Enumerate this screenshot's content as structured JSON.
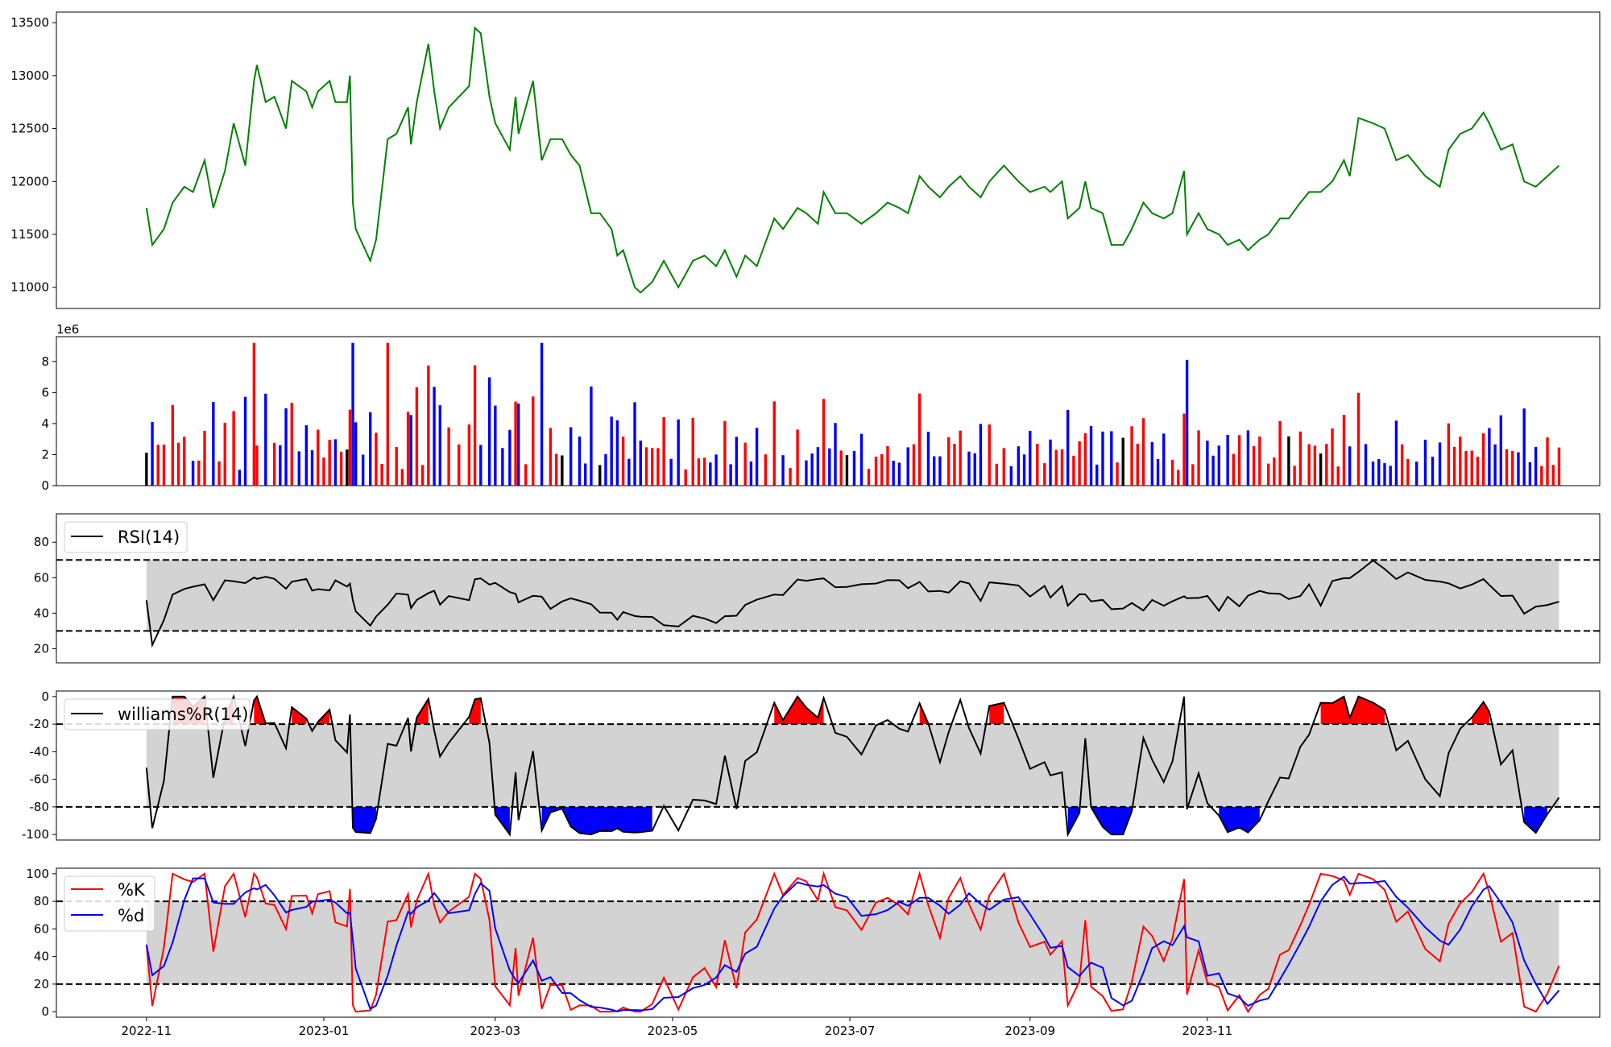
{
  "chart_data": [
    {
      "panel": "price",
      "type": "line",
      "ylim": [
        10800,
        13600
      ],
      "yticks": [
        11000,
        11500,
        12000,
        12500,
        13000,
        13500
      ],
      "colors": {
        "line": "#008000"
      },
      "series": [
        {
          "values": [
            [
              "2022-11-01",
              11750
            ],
            [
              "2022-11-03",
              11400
            ],
            [
              "2022-11-07",
              11550
            ],
            [
              "2022-11-10",
              11800
            ],
            [
              "2022-11-14",
              11950
            ],
            [
              "2022-11-17",
              11900
            ],
            [
              "2022-11-21",
              12200
            ],
            [
              "2022-11-24",
              11750
            ],
            [
              "2022-11-28",
              12100
            ],
            [
              "2022-12-01",
              12550
            ],
            [
              "2022-12-05",
              12150
            ],
            [
              "2022-12-08",
              12950
            ],
            [
              "2022-12-09",
              13100
            ],
            [
              "2022-12-12",
              12750
            ],
            [
              "2022-12-15",
              12800
            ],
            [
              "2022-12-19",
              12500
            ],
            [
              "2022-12-21",
              12950
            ],
            [
              "2022-12-26",
              12850
            ],
            [
              "2022-12-28",
              12700
            ],
            [
              "2022-12-30",
              12850
            ],
            [
              "2023-01-03",
              12950
            ],
            [
              "2023-01-05",
              12750
            ],
            [
              "2023-01-09",
              12750
            ],
            [
              "2023-01-10",
              13000
            ],
            [
              "2023-01-11",
              11800
            ],
            [
              "2023-01-12",
              11550
            ],
            [
              "2023-01-17",
              11250
            ],
            [
              "2023-01-19",
              11450
            ],
            [
              "2023-01-23",
              12400
            ],
            [
              "2023-01-26",
              12450
            ],
            [
              "2023-01-30",
              12700
            ],
            [
              "2023-01-31",
              12350
            ],
            [
              "2023-02-02",
              12750
            ],
            [
              "2023-02-06",
              13300
            ],
            [
              "2023-02-08",
              12850
            ],
            [
              "2023-02-10",
              12500
            ],
            [
              "2023-02-13",
              12700
            ],
            [
              "2023-02-20",
              12900
            ],
            [
              "2023-02-22",
              13450
            ],
            [
              "2023-02-24",
              13400
            ],
            [
              "2023-02-27",
              12800
            ],
            [
              "2023-03-01",
              12550
            ],
            [
              "2023-03-06",
              12300
            ],
            [
              "2023-03-08",
              12800
            ],
            [
              "2023-03-09",
              12450
            ],
            [
              "2023-03-14",
              12950
            ],
            [
              "2023-03-17",
              12200
            ],
            [
              "2023-03-20",
              12400
            ],
            [
              "2023-03-24",
              12400
            ],
            [
              "2023-03-27",
              12250
            ],
            [
              "2023-03-30",
              12150
            ],
            [
              "2023-04-03",
              11700
            ],
            [
              "2023-04-06",
              11700
            ],
            [
              "2023-04-10",
              11550
            ],
            [
              "2023-04-12",
              11300
            ],
            [
              "2023-04-14",
              11350
            ],
            [
              "2023-04-18",
              11000
            ],
            [
              "2023-04-20",
              10950
            ],
            [
              "2023-04-24",
              11050
            ],
            [
              "2023-04-28",
              11250
            ],
            [
              "2023-05-03",
              11000
            ],
            [
              "2023-05-08",
              11250
            ],
            [
              "2023-05-12",
              11300
            ],
            [
              "2023-05-16",
              11200
            ],
            [
              "2023-05-19",
              11350
            ],
            [
              "2023-05-23",
              11100
            ],
            [
              "2023-05-26",
              11300
            ],
            [
              "2023-05-30",
              11200
            ],
            [
              "2023-06-05",
              11650
            ],
            [
              "2023-06-08",
              11550
            ],
            [
              "2023-06-13",
              11750
            ],
            [
              "2023-06-16",
              11700
            ],
            [
              "2023-06-20",
              11600
            ],
            [
              "2023-06-22",
              11900
            ],
            [
              "2023-06-26",
              11700
            ],
            [
              "2023-06-30",
              11700
            ],
            [
              "2023-07-05",
              11600
            ],
            [
              "2023-07-10",
              11700
            ],
            [
              "2023-07-14",
              11800
            ],
            [
              "2023-07-18",
              11750
            ],
            [
              "2023-07-21",
              11700
            ],
            [
              "2023-07-25",
              12050
            ],
            [
              "2023-07-28",
              11950
            ],
            [
              "2023-08-01",
              11850
            ],
            [
              "2023-08-04",
              11950
            ],
            [
              "2023-08-08",
              12050
            ],
            [
              "2023-08-11",
              11950
            ],
            [
              "2023-08-15",
              11850
            ],
            [
              "2023-08-18",
              12000
            ],
            [
              "2023-08-23",
              12150
            ],
            [
              "2023-08-28",
              12000
            ],
            [
              "2023-09-01",
              11900
            ],
            [
              "2023-09-06",
              11950
            ],
            [
              "2023-09-08",
              11900
            ],
            [
              "2023-09-12",
              12000
            ],
            [
              "2023-09-14",
              11650
            ],
            [
              "2023-09-18",
              11750
            ],
            [
              "2023-09-20",
              12000
            ],
            [
              "2023-09-22",
              11750
            ],
            [
              "2023-09-26",
              11700
            ],
            [
              "2023-09-29",
              11400
            ],
            [
              "2023-10-03",
              11400
            ],
            [
              "2023-10-06",
              11550
            ],
            [
              "2023-10-10",
              11800
            ],
            [
              "2023-10-13",
              11700
            ],
            [
              "2023-10-17",
              11650
            ],
            [
              "2023-10-20",
              11700
            ],
            [
              "2023-10-24",
              12100
            ],
            [
              "2023-10-25",
              11500
            ],
            [
              "2023-10-29",
              11700
            ],
            [
              "2023-11-01",
              11550
            ],
            [
              "2023-11-05",
              11500
            ],
            [
              "2023-11-08",
              11400
            ],
            [
              "2023-11-12",
              11450
            ],
            [
              "2023-11-15",
              11350
            ],
            [
              "2023-11-19",
              11450
            ],
            [
              "2023-11-22",
              11500
            ],
            [
              "2023-11-26",
              11650
            ],
            [
              "2023-11-29",
              11650
            ],
            [
              "2023-12-03",
              11800
            ],
            [
              "2023-12-06",
              11900
            ],
            [
              "2023-12-10",
              11900
            ],
            [
              "2023-12-14",
              12000
            ],
            [
              "2023-12-18",
              12200
            ],
            [
              "2023-12-20",
              12050
            ],
            [
              "2023-12-23",
              12600
            ],
            [
              "2023-12-28",
              12550
            ],
            [
              "2024-01-01",
              12500
            ],
            [
              "2024-01-05",
              12200
            ],
            [
              "2024-01-09",
              12250
            ],
            [
              "2024-01-15",
              12050
            ],
            [
              "2024-01-20",
              11950
            ],
            [
              "2024-01-23",
              12300
            ],
            [
              "2024-01-27",
              12450
            ],
            [
              "2024-01-31",
              12500
            ],
            [
              "2024-02-04",
              12650
            ],
            [
              "2024-02-06",
              12550
            ],
            [
              "2024-02-10",
              12300
            ],
            [
              "2024-02-14",
              12350
            ],
            [
              "2024-02-18",
              12000
            ],
            [
              "2024-02-22",
              11950
            ],
            [
              "2024-02-26",
              12050
            ],
            [
              "2024-03-01",
              12150
            ]
          ]
        }
      ]
    },
    {
      "panel": "volume",
      "type": "bar",
      "ylim": [
        0,
        9600000
      ],
      "yticks": [
        0,
        2,
        4,
        6,
        8
      ],
      "offset_text": "1e6",
      "colors": {
        "up": "#ff0000",
        "down": "#0000ff",
        "flat": "#000000"
      }
    },
    {
      "panel": "rsi",
      "type": "line",
      "ylim": [
        12,
        96
      ],
      "yticks": [
        20,
        40,
        60,
        80
      ],
      "thresholds": [
        30,
        70
      ],
      "legend": [
        "RSI(14)"
      ],
      "legend_position": "upper-left",
      "colors": {
        "line": "#000000",
        "band": "#d3d3d3",
        "over": "#ff0000",
        "under": "#0000ff"
      }
    },
    {
      "panel": "williams_r",
      "type": "line",
      "ylim": [
        -104,
        4
      ],
      "yticks": [
        0,
        -20,
        -40,
        -60,
        -80,
        -100
      ],
      "thresholds": [
        -80,
        -20
      ],
      "legend": [
        "williams%R(14)"
      ],
      "legend_position": "upper-left",
      "colors": {
        "line": "#000000",
        "band": "#d3d3d3",
        "over": "#ff0000",
        "under": "#0000ff"
      }
    },
    {
      "panel": "stochastic",
      "type": "line",
      "ylim": [
        -4,
        104
      ],
      "yticks": [
        0,
        20,
        40,
        60,
        80,
        100
      ],
      "thresholds": [
        20,
        80
      ],
      "legend": [
        "%K",
        "%d"
      ],
      "legend_position": "upper-left",
      "colors": {
        "k": "#ff0000",
        "d": "#0000ff",
        "band": "#d3d3d3"
      }
    }
  ],
  "x_axis": {
    "start": "2022-10-01",
    "end": "2024-03-15",
    "ticks": [
      {
        "date": "2022-11-01",
        "label": "2022-11"
      },
      {
        "date": "2023-01-01",
        "label": "2023-01"
      },
      {
        "date": "2023-03-01",
        "label": "2023-03"
      },
      {
        "date": "2023-05-01",
        "label": "2023-05"
      },
      {
        "date": "2023-07-01",
        "label": "2023-07"
      },
      {
        "date": "2023-09-01",
        "label": "2023-09"
      },
      {
        "date": "2023-11-01",
        "label": "2023-11"
      }
    ]
  }
}
